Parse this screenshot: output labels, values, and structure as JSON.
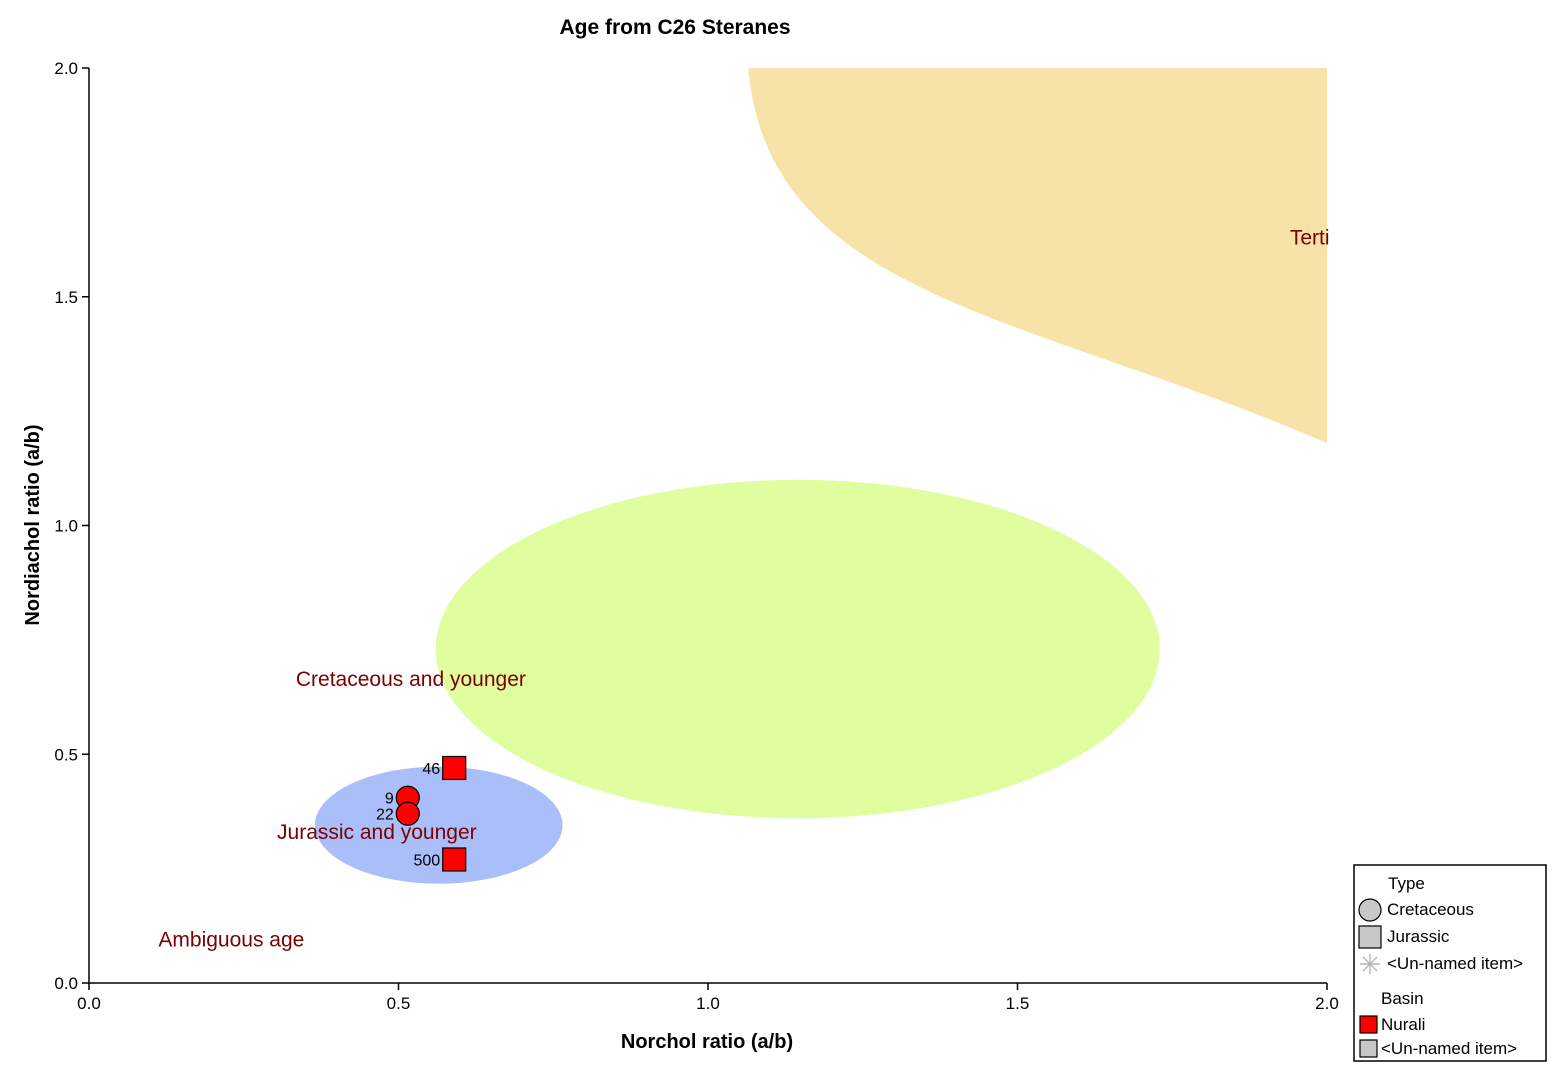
{
  "chart_data": {
    "type": "scatter",
    "title": "Age from C26 Steranes",
    "xlabel": "Norchol ratio (a/b)",
    "ylabel": "Nordiachol ratio (a/b)",
    "xlim": [
      0.0,
      2.0
    ],
    "ylim": [
      0.0,
      2.0
    ],
    "x_ticks": [
      0.0,
      0.5,
      1.0,
      1.5,
      2.0
    ],
    "y_ticks": [
      0.0,
      0.5,
      1.0,
      1.5,
      2.0
    ],
    "x_tick_labels": [
      "0.0",
      "0.5",
      "1.0",
      "1.5",
      "2.0"
    ],
    "y_tick_labels": [
      "0.0",
      "0.5",
      "1.0",
      "1.5",
      "2.0"
    ],
    "grid": false,
    "regions": [
      {
        "label": "Tertiary",
        "shown_label": "Terti",
        "shape": "curved-wedge",
        "color": "#f7e3a8",
        "top_left_x": 1.065,
        "bottom_right_y": 1.18,
        "label_x": 1.94,
        "label_y": 1.63
      },
      {
        "label": "Cretaceous and younger",
        "shape": "ellipse",
        "color": "#e0fda0",
        "cx": 1.145,
        "cy": 0.73,
        "rx": 0.585,
        "ry": 0.37,
        "label_x": 0.52,
        "label_y": 0.665
      },
      {
        "label": "Jurassic and younger",
        "shape": "ellipse",
        "color": "#aabffa",
        "cx": 0.565,
        "cy": 0.345,
        "rx": 0.2,
        "ry": 0.128,
        "label_x": 0.465,
        "label_y": 0.33
      },
      {
        "label": "Ambiguous age",
        "shape": "none",
        "label_x": 0.23,
        "label_y": 0.095
      }
    ],
    "series": [
      {
        "name": "Cretaceous",
        "marker": "circle",
        "color": "#ff0000",
        "points": [
          {
            "x": 0.515,
            "y": 0.405,
            "label": "9"
          },
          {
            "x": 0.515,
            "y": 0.37,
            "label": "22"
          }
        ]
      },
      {
        "name": "Jurassic",
        "marker": "square",
        "color": "#ff0000",
        "points": [
          {
            "x": 0.59,
            "y": 0.47,
            "label": "46"
          },
          {
            "x": 0.59,
            "y": 0.27,
            "label": "500"
          }
        ]
      }
    ],
    "legend": {
      "placement": "bottom-right",
      "groups": [
        {
          "title": "Type",
          "items": [
            {
              "label": "Cretaceous",
              "symbol": "circle",
              "color": "#c8c8c8"
            },
            {
              "label": "Jurassic",
              "symbol": "square",
              "color": "#c8c8c8"
            },
            {
              "label": "<Un-named item>",
              "symbol": "asterisk",
              "color": "#b4b4b4"
            }
          ]
        },
        {
          "title": "Basin",
          "items": [
            {
              "label": "Nurali",
              "symbol": "small-square",
              "color": "#ff0000"
            },
            {
              "label": "<Un-named item>",
              "symbol": "small-square",
              "color": "#c8c8c8"
            }
          ]
        }
      ]
    }
  }
}
